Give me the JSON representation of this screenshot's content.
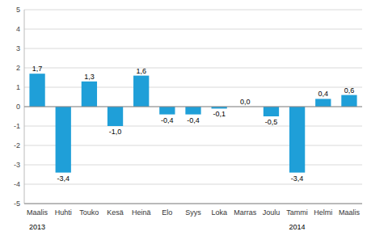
{
  "chart_data": {
    "type": "bar",
    "categories": [
      "Maalis",
      "Huhti",
      "Touko",
      "Kesä",
      "Heinä",
      "Elo",
      "Syys",
      "Loka",
      "Marras",
      "Joulu",
      "Tammi",
      "Helmi",
      "Maalis"
    ],
    "values": [
      1.7,
      -3.4,
      1.3,
      -1.0,
      1.6,
      -0.4,
      -0.4,
      -0.1,
      0.0,
      -0.5,
      -3.4,
      0.4,
      0.6
    ],
    "value_labels": [
      "1,7",
      "-3,4",
      "1,3",
      "-1,0",
      "1,6",
      "-0,4",
      "-0,4",
      "-0,1",
      "0,0",
      "-0,5",
      "-3,4",
      "0,4",
      "0,6"
    ],
    "data_labels": true,
    "color": "#1f9fd8",
    "ylim": [
      -5,
      5
    ],
    "yticks": [
      -5,
      -4,
      -3,
      -2,
      -1,
      0,
      1,
      2,
      3,
      4,
      5
    ],
    "grid": true,
    "annotations": [
      {
        "text": "2013",
        "category": 0
      },
      {
        "text": "2014",
        "category": 10
      }
    ]
  }
}
